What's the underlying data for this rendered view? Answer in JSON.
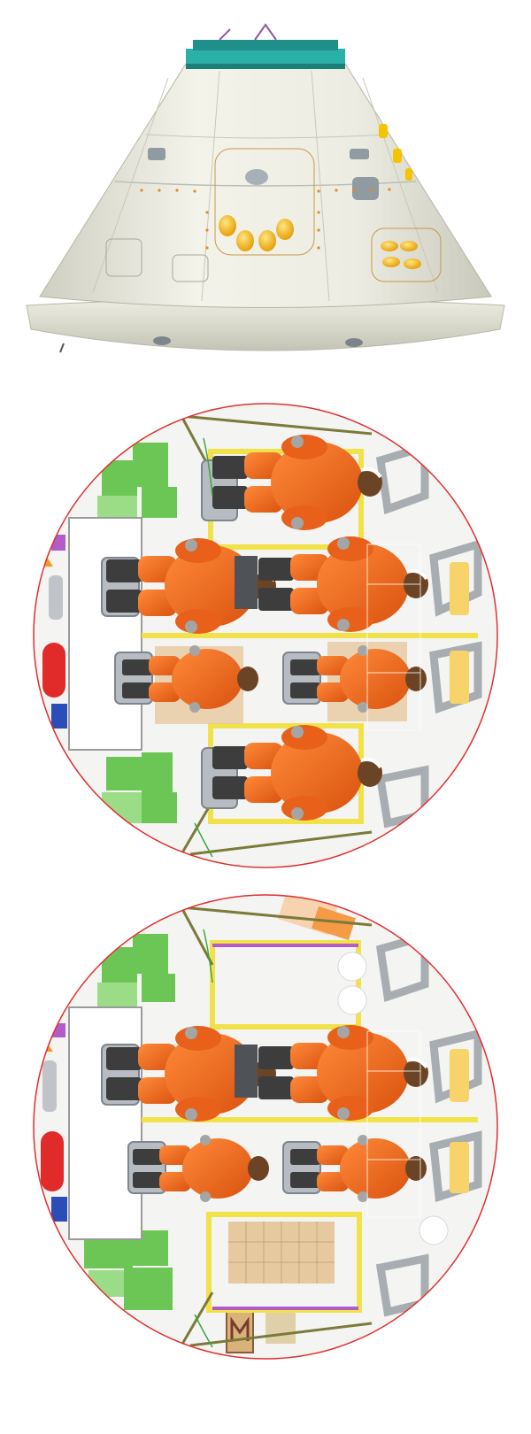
{
  "diagram": {
    "views": [
      {
        "id": "capsule-exterior",
        "kind": "exterior"
      },
      {
        "id": "cabin-layout-six-crew",
        "kind": "top-down",
        "crew_count": 6
      },
      {
        "id": "cabin-layout-four-crew",
        "kind": "top-down",
        "crew_count": 4
      }
    ],
    "colors": {
      "hull": "#eeeee4",
      "hull_shadow": "#c9c9bc",
      "docking_ring": "#2bb0a8",
      "window_amber": "#f5b800",
      "suit_orange": "#f26a1b",
      "suit_shadow": "#c94f10",
      "boot_grey": "#3d3d3d",
      "seat_grey": "#9aa0a6",
      "boundary_red": "#e03030",
      "rail_yellow": "#f2e24a",
      "storage_green": "#6cc655",
      "tank_red": "#e12a2a",
      "locker_tan": "#e7c9a0",
      "panel_white": "#ffffff"
    }
  }
}
